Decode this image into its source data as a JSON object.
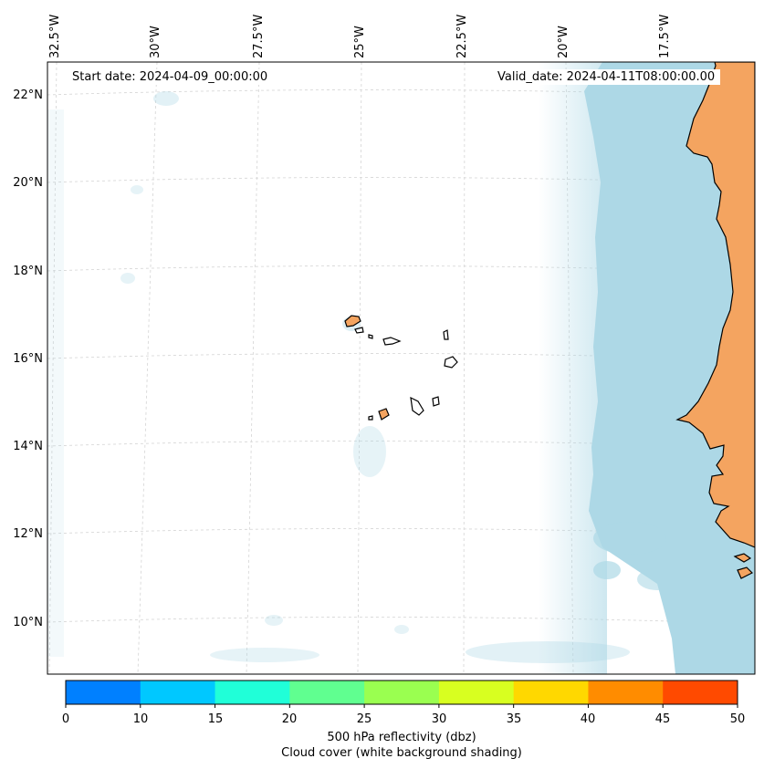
{
  "map": {
    "start_date": "Start date: 2024-04-09_00:00:00",
    "valid_date": "Valid_date: 2024-04-11T08:00:00.00",
    "lon_labels": [
      "32.5°W",
      "30°W",
      "27.5°W",
      "25°W",
      "22.5°W",
      "20°W",
      "17.5°W"
    ],
    "lat_labels": [
      "22°N",
      "20°N",
      "18°N",
      "16°N",
      "14°N",
      "12°N",
      "10°N"
    ],
    "colors": {
      "ocean_cloud": "#add8e6",
      "land": "#f4a460",
      "coastline": "#000000",
      "gridline": "#cccccc"
    }
  },
  "colorbar": {
    "ticks": [
      "0",
      "10",
      "15",
      "20",
      "25",
      "30",
      "35",
      "40",
      "45",
      "50"
    ],
    "colors": [
      "#0080ff",
      "#00c8ff",
      "#20ffd8",
      "#60ff90",
      "#9aff50",
      "#d8ff20",
      "#ffd800",
      "#ff8c00",
      "#ff4a00"
    ],
    "label_line1": "500 hPa reflectivity (dbz)",
    "label_line2": "Cloud cover (white background shading)"
  }
}
